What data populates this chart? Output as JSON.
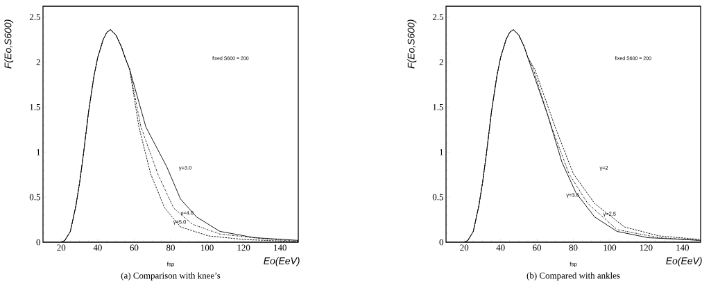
{
  "chart_data": [
    {
      "type": "line",
      "title": "(a) Comparison with knee’s",
      "xlabel": "Eo(EeV)",
      "ylabel": "F(Eo,S600)",
      "xlim": [
        10,
        150
      ],
      "ylim": [
        0,
        2.62
      ],
      "xticks": [
        20,
        40,
        60,
        80,
        100,
        120,
        140
      ],
      "yticks": [
        0,
        0.5,
        1,
        1.5,
        2,
        2.5
      ],
      "series": [
        {
          "color": "#000000",
          "line_style": "solid",
          "x": [
            20,
            22,
            25,
            28,
            30,
            32,
            35,
            38,
            40,
            43,
            45,
            47,
            50,
            53,
            55,
            57.5,
            66.4,
            77.8,
            85.4,
            94.2,
            107,
            126,
            150
          ],
          "values": [
            0,
            0.02,
            0.12,
            0.4,
            0.65,
            0.95,
            1.45,
            1.85,
            2.05,
            2.25,
            2.33,
            2.36,
            2.3,
            2.17,
            2.05,
            1.92,
            1.28,
            0.84,
            0.48,
            0.28,
            0.12,
            0.05,
            0.02
          ]
        },
        {
          "color": "#000000",
          "line_style": "dashdotted",
          "x": [
            20,
            22,
            25,
            28,
            30,
            32,
            35,
            38,
            40,
            43,
            45,
            47,
            50,
            53,
            55,
            57.5,
            63.7,
            72.9,
            81.6,
            91.9,
            107,
            130,
            150
          ],
          "values": [
            0,
            0.02,
            0.12,
            0.4,
            0.65,
            0.95,
            1.45,
            1.85,
            2.05,
            2.25,
            2.33,
            2.36,
            2.3,
            2.17,
            2.05,
            1.92,
            1.28,
            0.76,
            0.38,
            0.2,
            0.09,
            0.04,
            0.01
          ]
        },
        {
          "color": "#000000",
          "line_style": "dashed",
          "x": [
            20,
            22,
            25,
            28,
            30,
            32,
            35,
            38,
            40,
            43,
            45,
            47,
            50,
            53,
            55,
            57.5,
            62.6,
            69,
            76.7,
            85.4,
            100.7,
            120,
            150
          ],
          "values": [
            0,
            0.02,
            0.12,
            0.4,
            0.65,
            0.95,
            1.45,
            1.85,
            2.05,
            2.25,
            2.33,
            2.36,
            2.3,
            2.17,
            2.05,
            1.92,
            1.28,
            0.76,
            0.38,
            0.17,
            0.07,
            0.03,
            0.005
          ]
        }
      ],
      "annotations": [
        "fixed S600 = 200",
        "fsp",
        "γ=3.0",
        "γ=4.0",
        "γ=5.0"
      ]
    },
    {
      "type": "line",
      "title": "(b) Compared with ankles",
      "xlabel": "Eo(EeV)",
      "ylabel": "F(Eo,S600)",
      "xlim": [
        10,
        150
      ],
      "ylim": [
        0,
        2.62
      ],
      "xticks": [
        20,
        40,
        60,
        80,
        100,
        120,
        140
      ],
      "yticks": [
        0,
        0.5,
        1,
        1.5,
        2,
        2.5
      ],
      "series": [
        {
          "color": "#000000",
          "line_style": "solid",
          "x": [
            20,
            22,
            25,
            28,
            30,
            32,
            35,
            38,
            40,
            43,
            45,
            47,
            50,
            53,
            55,
            57.2,
            66.1,
            73.7,
            81.4,
            91.7,
            104,
            121,
            150
          ],
          "values": [
            0,
            0.02,
            0.12,
            0.4,
            0.65,
            0.95,
            1.45,
            1.85,
            2.05,
            2.25,
            2.33,
            2.36,
            2.3,
            2.17,
            2.05,
            1.92,
            1.4,
            0.89,
            0.55,
            0.28,
            0.12,
            0.05,
            0.02
          ]
        },
        {
          "color": "#000000",
          "line_style": "dashdotted",
          "x": [
            20,
            22,
            25,
            28,
            30,
            32,
            35,
            38,
            40,
            43,
            45,
            47,
            50,
            53,
            55,
            58,
            68,
            77.6,
            87.9,
            104,
            127,
            150
          ],
          "values": [
            0,
            0.02,
            0.12,
            0.4,
            0.65,
            0.95,
            1.45,
            1.85,
            2.05,
            2.25,
            2.33,
            2.36,
            2.3,
            2.17,
            2.05,
            1.92,
            1.28,
            0.76,
            0.43,
            0.14,
            0.05,
            0.02
          ]
        },
        {
          "color": "#000000",
          "line_style": "dashed",
          "x": [
            20,
            22,
            25,
            28,
            30,
            32,
            35,
            38,
            40,
            43,
            45,
            47,
            50,
            53,
            55,
            58.8,
            70,
            80,
            91.7,
            108,
            127,
            150
          ],
          "values": [
            0,
            0.02,
            0.12,
            0.4,
            0.65,
            0.95,
            1.45,
            1.85,
            2.05,
            2.25,
            2.33,
            2.36,
            2.3,
            2.17,
            2.05,
            1.92,
            1.28,
            0.76,
            0.43,
            0.17,
            0.07,
            0.03
          ]
        }
      ],
      "annotations": [
        "fixed S600 = 200",
        "fsp",
        "γ=2",
        "γ=3.0",
        "γ=2.5"
      ]
    }
  ]
}
